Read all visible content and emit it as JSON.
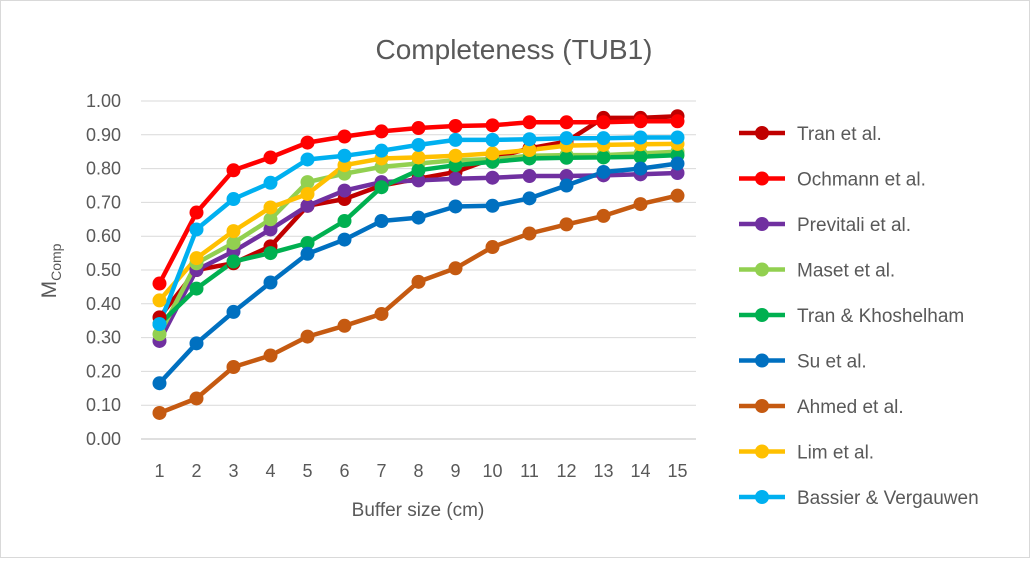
{
  "chart_data": {
    "type": "line",
    "title": "Completeness (TUB1)",
    "xlabel": "Buffer size (cm)",
    "ylabel": "M",
    "ylabel_sub": "Comp",
    "ylim": [
      0,
      1
    ],
    "y_ticks": [
      "0.00",
      "0.10",
      "0.20",
      "0.30",
      "0.40",
      "0.50",
      "0.60",
      "0.70",
      "0.80",
      "0.90",
      "1.00"
    ],
    "x": [
      1,
      2,
      3,
      4,
      5,
      6,
      7,
      8,
      9,
      10,
      11,
      12,
      13,
      14,
      15
    ],
    "grid": true,
    "legend_position": "right",
    "series": [
      {
        "name": "Tran et al.",
        "color": "#c00000",
        "values": [
          0.36,
          0.5,
          0.52,
          0.57,
          0.69,
          0.71,
          0.75,
          0.77,
          0.79,
          0.83,
          0.86,
          0.88,
          0.95,
          0.95,
          0.955
        ]
      },
      {
        "name": "Ochmann et al.",
        "color": "#ff0000",
        "values": [
          0.46,
          0.67,
          0.795,
          0.833,
          0.877,
          0.895,
          0.91,
          0.92,
          0.926,
          0.928,
          0.937,
          0.937,
          0.937,
          0.94,
          0.94
        ]
      },
      {
        "name": "Previtali et al.",
        "color": "#7030a0",
        "values": [
          0.29,
          0.5,
          0.555,
          0.62,
          0.69,
          0.735,
          0.76,
          0.765,
          0.77,
          0.773,
          0.778,
          0.778,
          0.78,
          0.783,
          0.787
        ]
      },
      {
        "name": "Maset et al.",
        "color": "#92d050",
        "values": [
          0.31,
          0.52,
          0.58,
          0.65,
          0.76,
          0.785,
          0.805,
          0.815,
          0.825,
          0.828,
          0.838,
          0.84,
          0.84,
          0.845,
          0.85
        ]
      },
      {
        "name": "Tran & Khoshelham",
        "color": "#00b050",
        "values": [
          0.34,
          0.445,
          0.525,
          0.55,
          0.58,
          0.645,
          0.745,
          0.795,
          0.81,
          0.82,
          0.83,
          0.832,
          0.833,
          0.835,
          0.84
        ]
      },
      {
        "name": "Su et al.",
        "color": "#0070c0",
        "values": [
          0.165,
          0.283,
          0.376,
          0.463,
          0.548,
          0.59,
          0.645,
          0.655,
          0.688,
          0.69,
          0.712,
          0.75,
          0.79,
          0.8,
          0.815
        ]
      },
      {
        "name": "Ahmed et al.",
        "color": "#c55a11",
        "values": [
          0.077,
          0.12,
          0.213,
          0.247,
          0.303,
          0.335,
          0.37,
          0.465,
          0.505,
          0.568,
          0.608,
          0.635,
          0.66,
          0.695,
          0.72
        ]
      },
      {
        "name": "Lim et al.",
        "color": "#ffc000",
        "values": [
          0.41,
          0.535,
          0.615,
          0.685,
          0.725,
          0.81,
          0.83,
          0.833,
          0.838,
          0.845,
          0.855,
          0.868,
          0.87,
          0.872,
          0.873
        ]
      },
      {
        "name": "Bassier & Vergauwen",
        "color": "#00b0f0",
        "values": [
          0.34,
          0.62,
          0.71,
          0.758,
          0.827,
          0.838,
          0.853,
          0.87,
          0.885,
          0.885,
          0.887,
          0.89,
          0.89,
          0.892,
          0.892
        ]
      }
    ]
  }
}
